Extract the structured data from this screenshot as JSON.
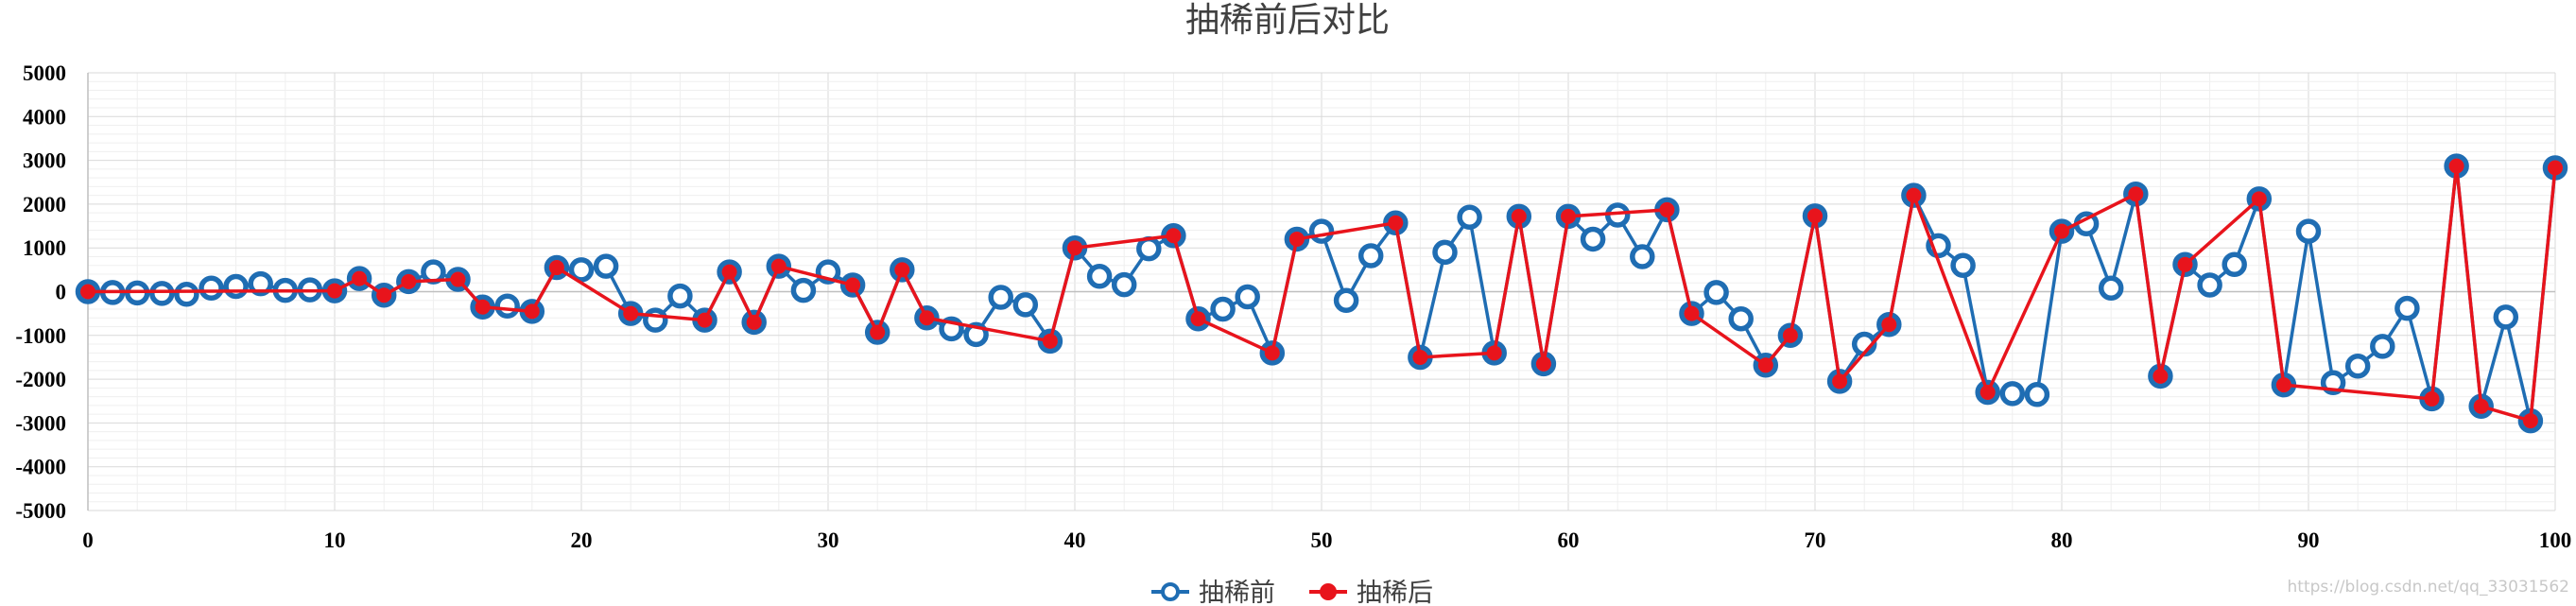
{
  "chart_data": {
    "type": "line",
    "title": "抽稀前后对比",
    "xlim": [
      0,
      100
    ],
    "ylim": [
      -5000,
      5000
    ],
    "x_ticks": [
      0,
      10,
      20,
      30,
      40,
      50,
      60,
      70,
      80,
      90,
      100
    ],
    "y_ticks": [
      5000,
      4000,
      3000,
      2000,
      1000,
      0,
      -1000,
      -2000,
      -3000,
      -4000,
      -5000
    ],
    "grid": true,
    "legend_position": "bottom",
    "series": [
      {
        "name": "抽稀前",
        "color": "#1f6db3",
        "marker": "hollow-circle",
        "points": [
          [
            0,
            0
          ],
          [
            1,
            -20
          ],
          [
            2,
            -30
          ],
          [
            3,
            -40
          ],
          [
            4,
            -60
          ],
          [
            5,
            80
          ],
          [
            6,
            120
          ],
          [
            7,
            180
          ],
          [
            8,
            30
          ],
          [
            9,
            40
          ],
          [
            10,
            20
          ],
          [
            11,
            300
          ],
          [
            12,
            -80
          ],
          [
            13,
            230
          ],
          [
            14,
            450
          ],
          [
            15,
            280
          ],
          [
            16,
            -350
          ],
          [
            17,
            -330
          ],
          [
            18,
            -450
          ],
          [
            19,
            550
          ],
          [
            20,
            500
          ],
          [
            21,
            580
          ],
          [
            22,
            -500
          ],
          [
            23,
            -650
          ],
          [
            24,
            -100
          ],
          [
            25,
            -650
          ],
          [
            26,
            450
          ],
          [
            27,
            -700
          ],
          [
            28,
            580
          ],
          [
            29,
            30
          ],
          [
            30,
            450
          ],
          [
            31,
            150
          ],
          [
            32,
            -930
          ],
          [
            33,
            500
          ],
          [
            34,
            -600
          ],
          [
            35,
            -850
          ],
          [
            36,
            -980
          ],
          [
            37,
            -130
          ],
          [
            38,
            -300
          ],
          [
            39,
            -1130
          ],
          [
            40,
            1000
          ],
          [
            41,
            350
          ],
          [
            42,
            160
          ],
          [
            43,
            980
          ],
          [
            44,
            1280
          ],
          [
            45,
            -620
          ],
          [
            46,
            -400
          ],
          [
            47,
            -120
          ],
          [
            48,
            -1400
          ],
          [
            49,
            1200
          ],
          [
            50,
            1380
          ],
          [
            51,
            -200
          ],
          [
            52,
            820
          ],
          [
            53,
            1570
          ],
          [
            54,
            -1500
          ],
          [
            55,
            900
          ],
          [
            56,
            1700
          ],
          [
            57,
            -1400
          ],
          [
            58,
            1720
          ],
          [
            59,
            -1650
          ],
          [
            60,
            1720
          ],
          [
            61,
            1200
          ],
          [
            62,
            1750
          ],
          [
            63,
            800
          ],
          [
            64,
            1870
          ],
          [
            65,
            -500
          ],
          [
            66,
            -20
          ],
          [
            67,
            -620
          ],
          [
            68,
            -1680
          ],
          [
            69,
            -1000
          ],
          [
            70,
            1730
          ],
          [
            71,
            -2050
          ],
          [
            72,
            -1200
          ],
          [
            73,
            -750
          ],
          [
            74,
            2200
          ],
          [
            75,
            1050
          ],
          [
            76,
            600
          ],
          [
            77,
            -2300
          ],
          [
            78,
            -2330
          ],
          [
            79,
            -2350
          ],
          [
            80,
            1380
          ],
          [
            81,
            1550
          ],
          [
            82,
            80
          ],
          [
            83,
            2230
          ],
          [
            84,
            -1930
          ],
          [
            85,
            620
          ],
          [
            86,
            150
          ],
          [
            87,
            620
          ],
          [
            88,
            2120
          ],
          [
            89,
            -2130
          ],
          [
            90,
            1380
          ],
          [
            91,
            -2080
          ],
          [
            92,
            -1700
          ],
          [
            93,
            -1250
          ],
          [
            94,
            -380
          ],
          [
            95,
            -2450
          ],
          [
            96,
            2870
          ],
          [
            97,
            -2620
          ],
          [
            98,
            -580
          ],
          [
            99,
            -2950
          ],
          [
            100,
            2830
          ]
        ]
      },
      {
        "name": "抽稀后",
        "color": "#e8141c",
        "marker": "filled-circle",
        "points": [
          [
            0,
            0
          ],
          [
            10,
            20
          ],
          [
            11,
            300
          ],
          [
            12,
            -80
          ],
          [
            13,
            230
          ],
          [
            15,
            280
          ],
          [
            16,
            -350
          ],
          [
            18,
            -450
          ],
          [
            19,
            550
          ],
          [
            22,
            -500
          ],
          [
            25,
            -650
          ],
          [
            26,
            450
          ],
          [
            27,
            -700
          ],
          [
            28,
            580
          ],
          [
            31,
            150
          ],
          [
            32,
            -930
          ],
          [
            33,
            500
          ],
          [
            34,
            -600
          ],
          [
            39,
            -1130
          ],
          [
            40,
            1000
          ],
          [
            44,
            1280
          ],
          [
            45,
            -620
          ],
          [
            48,
            -1400
          ],
          [
            49,
            1200
          ],
          [
            53,
            1570
          ],
          [
            54,
            -1500
          ],
          [
            57,
            -1400
          ],
          [
            58,
            1720
          ],
          [
            59,
            -1650
          ],
          [
            60,
            1720
          ],
          [
            64,
            1870
          ],
          [
            65,
            -500
          ],
          [
            68,
            -1680
          ],
          [
            69,
            -1000
          ],
          [
            70,
            1730
          ],
          [
            71,
            -2050
          ],
          [
            73,
            -750
          ],
          [
            74,
            2200
          ],
          [
            77,
            -2300
          ],
          [
            80,
            1380
          ],
          [
            83,
            2230
          ],
          [
            84,
            -1930
          ],
          [
            85,
            620
          ],
          [
            88,
            2120
          ],
          [
            89,
            -2130
          ],
          [
            95,
            -2450
          ],
          [
            96,
            2870
          ],
          [
            97,
            -2620
          ],
          [
            99,
            -2950
          ],
          [
            100,
            2830
          ]
        ]
      }
    ]
  },
  "watermark": "https://blog.csdn.net/qq_33031562"
}
